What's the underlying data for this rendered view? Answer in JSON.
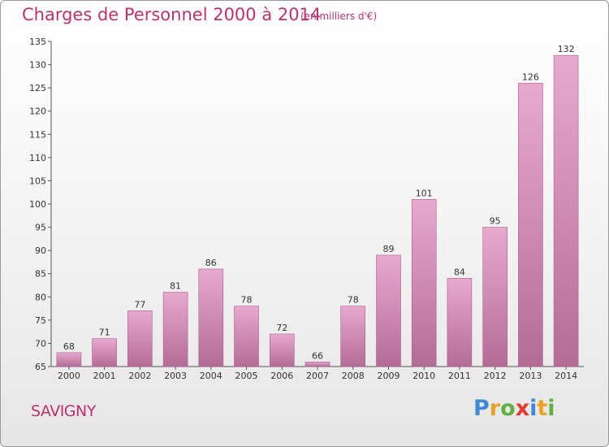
{
  "title": "Charges de Personnel 2000 à 2014",
  "subtitle": "(en milliers d'€)",
  "city": "SAVIGNY",
  "logo": {
    "letters": [
      "P",
      "r",
      "o",
      "x",
      "i",
      "t",
      "i"
    ],
    "colors": [
      "#3d8ad6",
      "#f0a020",
      "#60b040",
      "#e8382c",
      "#3d8ad6",
      "#f0a020",
      "#60b040"
    ]
  },
  "colors": {
    "accent": "#c0306c",
    "bar_top": "#e8a9cf",
    "bar_bottom": "#b46c97",
    "bar_edge": "#a85e8b"
  },
  "chart_data": {
    "type": "bar",
    "title": "Charges de Personnel 2000 à 2014",
    "subtitle": "(en milliers d'€)",
    "categories": [
      "2000",
      "2001",
      "2002",
      "2003",
      "2004",
      "2005",
      "2006",
      "2007",
      "2008",
      "2009",
      "2010",
      "2011",
      "2012",
      "2013",
      "2014"
    ],
    "values": [
      68,
      71,
      77,
      81,
      86,
      78,
      72,
      66,
      78,
      89,
      101,
      84,
      95,
      126,
      132
    ],
    "ylim": [
      65,
      135
    ],
    "yticks": [
      65,
      70,
      75,
      80,
      85,
      90,
      95,
      100,
      105,
      110,
      115,
      120,
      125,
      130,
      135
    ],
    "xlabel": "",
    "ylabel": "",
    "grid": false,
    "data_labels": true
  }
}
